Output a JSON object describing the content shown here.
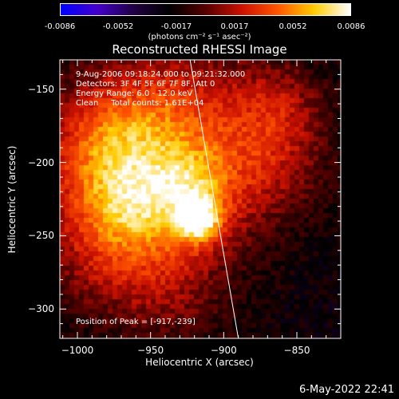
{
  "chart_data": {
    "type": "heatmap",
    "title": "Reconstructed RHESSI Image",
    "xlabel": "Heliocentric X (arcsec)",
    "ylabel": "Heliocentric Y (arcsec)",
    "xlim": [
      -1012,
      -820
    ],
    "ylim": [
      -320,
      -130
    ],
    "x_ticks": [
      -1000,
      -950,
      -900,
      -850
    ],
    "y_ticks": [
      -150,
      -200,
      -250,
      -300
    ],
    "colorbar": {
      "ticks": [
        "-0.0086",
        "-0.0052",
        "-0.0017",
        "0.0017",
        "0.0052",
        "0.0086"
      ],
      "min": -0.0086,
      "max": 0.0086,
      "unit_label": "(photons cm⁻² s⁻¹ asec⁻²)"
    },
    "peak": {
      "x": -917,
      "y": -239
    },
    "annotations": [
      "9-Aug-2006 09:18:24.000 to 09:21:32.000",
      "Detectors: 3F 4F 5F 6F 7F 8F, Att 0",
      "Energy Range: 6.0 - 12.0 keV",
      "Clean     Total counts: 1.61E+04"
    ],
    "peak_label": "Position of Peak = [-917,-239]",
    "limb_line": [
      [
        -923,
        -125
      ],
      [
        -890,
        -320
      ]
    ]
  },
  "colors": {
    "background": "#000000",
    "colormap": [
      "#0000ff",
      "#4400cc",
      "#220044",
      "#000000",
      "#550000",
      "#cc1100",
      "#ff5500",
      "#ffcc00",
      "#ffffff"
    ]
  },
  "footer": {
    "datestamp": "6-May-2022 22:41"
  }
}
